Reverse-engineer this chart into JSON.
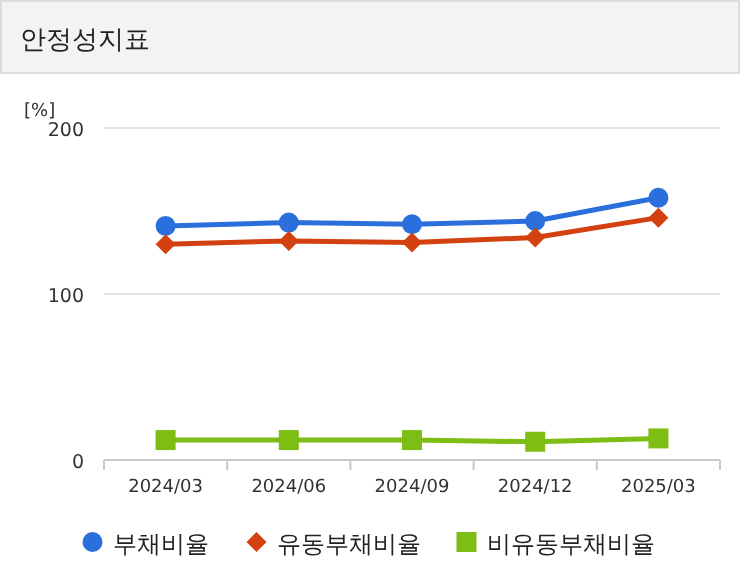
{
  "chart_data": {
    "type": "line",
    "title": "안정성지표",
    "ylabel": "[%]",
    "categories": [
      "2024/03",
      "2024/06",
      "2024/09",
      "2024/12",
      "2025/03"
    ],
    "series": [
      {
        "name": "부채비율",
        "color": "#2a6fdb",
        "values": [
          141,
          143,
          142,
          144,
          158
        ],
        "marker": "circle"
      },
      {
        "name": "유동부채비율",
        "color": "#d2410f",
        "values": [
          130,
          132,
          131,
          134,
          146
        ],
        "marker": "diamond"
      },
      {
        "name": "비유동부채비율",
        "color": "#7dbd14",
        "values": [
          12,
          12,
          12,
          11,
          13
        ],
        "marker": "square"
      }
    ],
    "ylim": [
      0,
      200
    ],
    "yticks": [
      0,
      100,
      200
    ],
    "grid": "y",
    "legend": "bottom"
  }
}
